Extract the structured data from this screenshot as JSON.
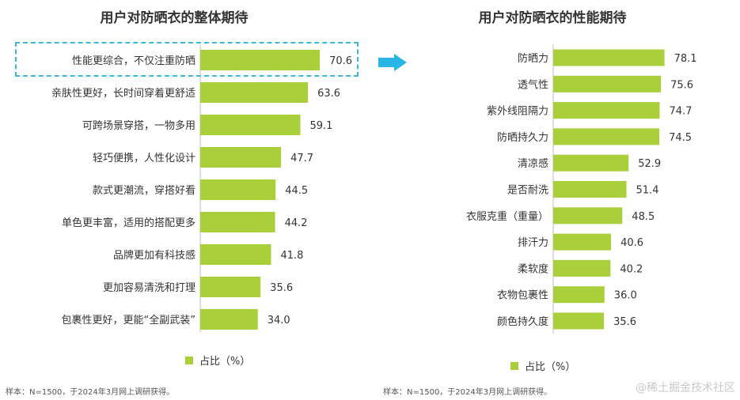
{
  "colors": {
    "bar": "#a9cf3b",
    "arrow": "#29b6e6",
    "highlight": "#3cb8d8"
  },
  "left": {
    "title": "用户对防晒衣的整体期待",
    "legend": "占比（%）",
    "note": "样本：N=1500，于2024年3月网上调研获得。"
  },
  "right": {
    "title": "用户对防晒衣的性能期待",
    "legend": "占比（%）",
    "note": "样本：N=1500，于2024年3月网上调研获得。"
  },
  "watermark": "@稀土掘金技术社区",
  "chart_data": [
    {
      "type": "bar",
      "orientation": "horizontal",
      "title": "用户对防晒衣的整体期待",
      "categories": [
        "性能更综合，不仅注重防晒",
        "亲肤性更好，长时间穿着更舒适",
        "可跨场景穿搭，一物多用",
        "轻巧便携，人性化设计",
        "款式更潮流，穿搭好看",
        "单色更丰富，适用的搭配更多",
        "品牌更加有科技感",
        "更加容易清洗和打理",
        "包裹性更好，更能“全副武装”"
      ],
      "series": [
        {
          "name": "占比（%）",
          "values": [
            70.6,
            63.6,
            59.1,
            47.7,
            44.5,
            44.2,
            41.8,
            35.6,
            34.0
          ]
        }
      ],
      "highlighted_category": "性能更综合，不仅注重防晒",
      "legend_position": "bottom"
    },
    {
      "type": "bar",
      "orientation": "horizontal",
      "title": "用户对防晒衣的性能期待",
      "categories": [
        "防晒力",
        "透气性",
        "紫外线阻隔力",
        "防晒持久力",
        "清凉感",
        "是否耐洗",
        "衣服克重（重量）",
        "排汗力",
        "柔软度",
        "衣物包裹性",
        "颜色持久度"
      ],
      "series": [
        {
          "name": "占比（%）",
          "values": [
            78.1,
            75.6,
            74.7,
            74.5,
            52.9,
            51.4,
            48.5,
            40.6,
            40.2,
            36.0,
            35.6
          ]
        }
      ],
      "legend_position": "bottom"
    }
  ]
}
